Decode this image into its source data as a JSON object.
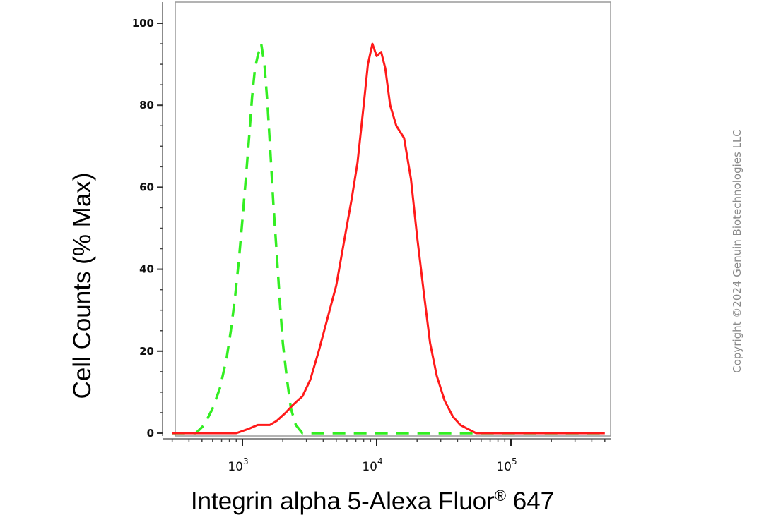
{
  "chart_data": {
    "type": "line",
    "xlabel_main": "Integrin alpha 5-Alexa Fluor",
    "xlabel_reg": "®",
    "xlabel_tail": " 647",
    "ylabel": "Cell Counts (% Max)",
    "x_scale": "log",
    "xlim": [
      300,
      500000
    ],
    "ylim": [
      0,
      105
    ],
    "y_ticks": [
      0,
      20,
      40,
      60,
      80,
      100
    ],
    "x_ticks": [
      {
        "value": 1000,
        "base": "10",
        "exp": "3"
      },
      {
        "value": 10000,
        "base": "10",
        "exp": "4"
      },
      {
        "value": 100000,
        "base": "10",
        "exp": "5"
      }
    ],
    "grid": false,
    "series": [
      {
        "color": "#33ee22",
        "dash": "dashed",
        "points": [
          [
            300,
            0
          ],
          [
            450,
            0
          ],
          [
            520,
            2
          ],
          [
            600,
            6
          ],
          [
            680,
            11
          ],
          [
            760,
            18
          ],
          [
            820,
            25
          ],
          [
            880,
            33
          ],
          [
            940,
            42
          ],
          [
            1000,
            52
          ],
          [
            1060,
            62
          ],
          [
            1120,
            72
          ],
          [
            1180,
            82
          ],
          [
            1240,
            89
          ],
          [
            1300,
            92
          ],
          [
            1380,
            95
          ],
          [
            1460,
            90
          ],
          [
            1540,
            80
          ],
          [
            1620,
            68
          ],
          [
            1700,
            56
          ],
          [
            1800,
            44
          ],
          [
            1900,
            32
          ],
          [
            2000,
            22
          ],
          [
            2150,
            13
          ],
          [
            2300,
            6
          ],
          [
            2500,
            2
          ],
          [
            2800,
            0
          ],
          [
            500000,
            0
          ]
        ]
      },
      {
        "color": "#ff1a1a",
        "dash": "solid",
        "points": [
          [
            300,
            0
          ],
          [
            900,
            0
          ],
          [
            1100,
            1
          ],
          [
            1300,
            2
          ],
          [
            1600,
            2
          ],
          [
            1800,
            3
          ],
          [
            2100,
            5
          ],
          [
            2400,
            7
          ],
          [
            2800,
            9
          ],
          [
            3200,
            13
          ],
          [
            3700,
            20
          ],
          [
            4300,
            28
          ],
          [
            5000,
            36
          ],
          [
            5800,
            48
          ],
          [
            6500,
            57
          ],
          [
            7200,
            66
          ],
          [
            8000,
            80
          ],
          [
            8600,
            90
          ],
          [
            9300,
            95
          ],
          [
            10000,
            92
          ],
          [
            10800,
            93
          ],
          [
            11600,
            89
          ],
          [
            12600,
            80
          ],
          [
            14000,
            75
          ],
          [
            16000,
            72
          ],
          [
            18000,
            62
          ],
          [
            20000,
            48
          ],
          [
            22500,
            34
          ],
          [
            25000,
            22
          ],
          [
            28000,
            14
          ],
          [
            32000,
            8
          ],
          [
            37000,
            4
          ],
          [
            42000,
            2
          ],
          [
            48000,
            1
          ],
          [
            55000,
            0
          ],
          [
            500000,
            0
          ]
        ]
      }
    ]
  },
  "watermark": "Copyright ©2024 Genuin Biotechnologies LLC"
}
